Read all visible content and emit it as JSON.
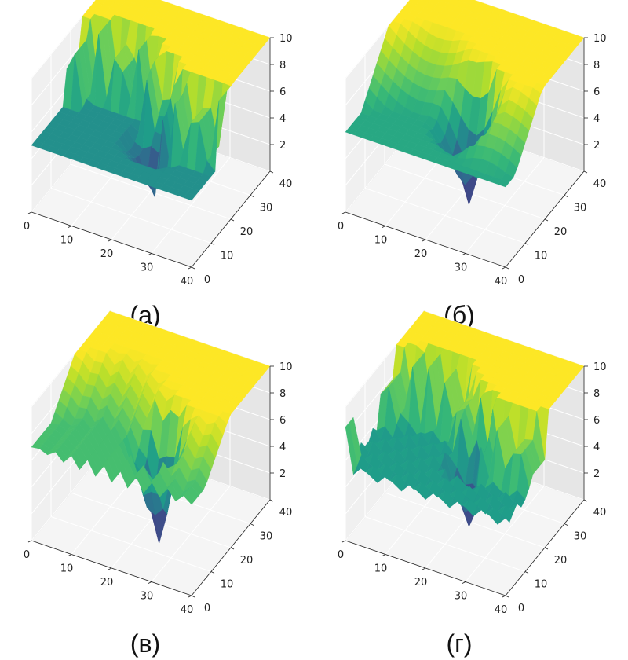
{
  "colors": {
    "pane_left": "#f0f0f0",
    "pane_right": "#e6e6e6",
    "pane_floor": "#f5f5f5",
    "grid": "#ffffff",
    "axis": "#222222",
    "text": "#222222"
  },
  "chart_data": [
    {
      "type": "surface3d",
      "panel": "a",
      "caption": "(а)",
      "colormap": "viridis",
      "x_ticks": [
        "0",
        "10",
        "20",
        "30",
        "40"
      ],
      "y_ticks": [
        "0",
        "10",
        "20",
        "30",
        "40"
      ],
      "z_ticks": [
        "2",
        "4",
        "6",
        "8",
        "10"
      ],
      "xlim": [
        0,
        40
      ],
      "ylim": [
        0,
        40
      ],
      "zlim": [
        0,
        10
      ],
      "plateau_level": 10,
      "floor_level": 5,
      "well_depth": 1,
      "description": "oscillating vertical wall"
    },
    {
      "type": "surface3d",
      "panel": "b",
      "caption": "(б)",
      "colormap": "viridis",
      "x_ticks": [
        "0",
        "10",
        "20",
        "30",
        "40"
      ],
      "y_ticks": [
        "0",
        "10",
        "20",
        "30",
        "40"
      ],
      "z_ticks": [
        "2",
        "4",
        "6",
        "8",
        "10"
      ],
      "xlim": [
        0,
        40
      ],
      "ylim": [
        0,
        40
      ],
      "zlim": [
        0,
        10
      ],
      "plateau_level": 10,
      "floor_level": 6,
      "well_depth": 0.5,
      "description": "smooth curved valley with deep well"
    },
    {
      "type": "surface3d",
      "panel": "v",
      "caption": "(в)",
      "colormap": "viridis",
      "x_ticks": [
        "0",
        "10",
        "20",
        "30",
        "40"
      ],
      "y_ticks": [
        "0",
        "10",
        "20",
        "30",
        "40"
      ],
      "z_ticks": [
        "2",
        "4",
        "6",
        "8",
        "10"
      ],
      "xlim": [
        0,
        40
      ],
      "ylim": [
        0,
        40
      ],
      "zlim": [
        0,
        10
      ],
      "plateau_level": 10,
      "floor_level": 7,
      "well_depth": 0.3,
      "description": "oscillating valley with deep narrow well"
    },
    {
      "type": "surface3d",
      "panel": "g",
      "caption": "(г)",
      "colormap": "viridis",
      "x_ticks": [
        "0",
        "10",
        "20",
        "30",
        "40"
      ],
      "y_ticks": [
        "0",
        "10",
        "20",
        "30",
        "40"
      ],
      "z_ticks": [
        "2",
        "4",
        "6",
        "8",
        "10"
      ],
      "xlim": [
        0,
        40
      ],
      "ylim": [
        0,
        40
      ],
      "zlim": [
        0,
        10
      ],
      "plateau_level": 10,
      "floor_level": 5.5,
      "well_depth": 1,
      "description": "noisy floor with oscillating wall"
    }
  ]
}
